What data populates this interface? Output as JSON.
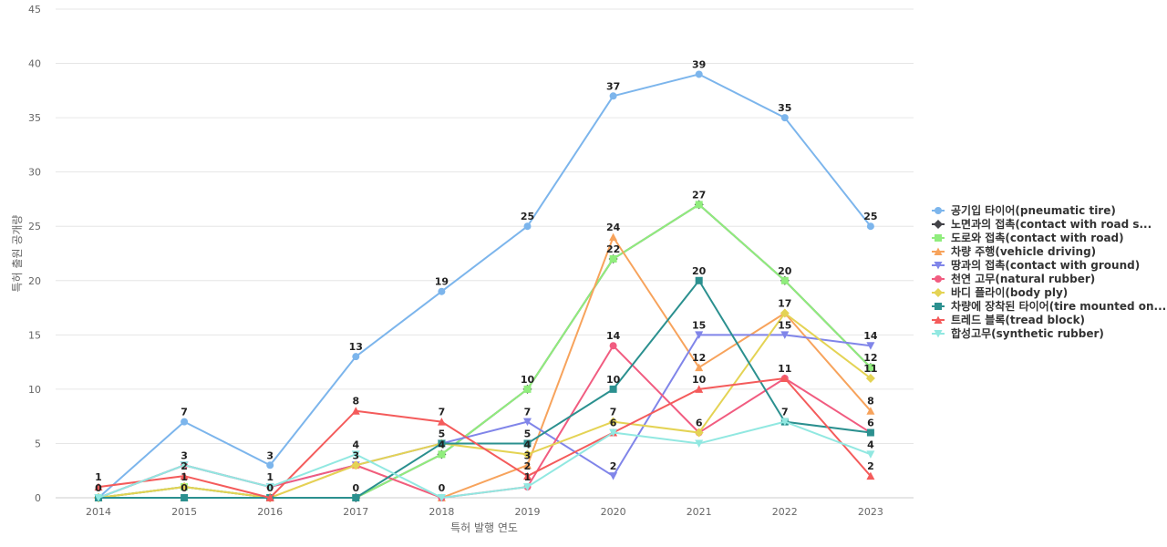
{
  "chart_data": {
    "type": "line",
    "xlabel": "특허 발행 연도",
    "ylabel": "특허 출원 공개량",
    "ylim": [
      0,
      45
    ],
    "yticks": [
      0,
      5,
      10,
      15,
      20,
      25,
      30,
      35,
      40,
      45
    ],
    "grid": true,
    "legend_position": "right",
    "categories": [
      "2014",
      "2015",
      "2016",
      "2017",
      "2018",
      "2019",
      "2020",
      "2021",
      "2022",
      "2023"
    ],
    "series": [
      {
        "name": "공기입 타이어(pneumatic tire)",
        "color": "#7cb5ec",
        "marker": "circle",
        "values": [
          0,
          7,
          3,
          13,
          19,
          25,
          37,
          39,
          35,
          25
        ]
      },
      {
        "name": "노면과의 접촉(contact with road s...",
        "color": "#434348",
        "marker": "diamond",
        "values": [
          0,
          1,
          0,
          0,
          4,
          10,
          22,
          27,
          20,
          12
        ]
      },
      {
        "name": "도로와 접촉(contact with road)",
        "color": "#90ed7d",
        "marker": "square",
        "values": [
          0,
          1,
          0,
          0,
          4,
          10,
          22,
          27,
          20,
          12
        ]
      },
      {
        "name": "차량 주행(vehicle driving)",
        "color": "#f7a35c",
        "marker": "triangle",
        "values": [
          0,
          0,
          0,
          3,
          0,
          3,
          24,
          12,
          17,
          8
        ]
      },
      {
        "name": "땅과의 접촉(contact with ground)",
        "color": "#8085e9",
        "marker": "triangle-down",
        "values": [
          0,
          3,
          1,
          3,
          5,
          7,
          2,
          15,
          15,
          14
        ]
      },
      {
        "name": "천연 고무(natural rubber)",
        "color": "#f15c80",
        "marker": "circle",
        "values": [
          0,
          3,
          1,
          3,
          0,
          1,
          14,
          6,
          11,
          6
        ]
      },
      {
        "name": "바디 플라이(body ply)",
        "color": "#e4d354",
        "marker": "diamond",
        "values": [
          0,
          1,
          0,
          3,
          5,
          4,
          7,
          6,
          17,
          11
        ]
      },
      {
        "name": "차량에 장착된 타이어(tire mounted on...",
        "color": "#2b908f",
        "marker": "square",
        "values": [
          0,
          0,
          0,
          0,
          5,
          5,
          10,
          20,
          7,
          6
        ]
      },
      {
        "name": "트레드 블록(tread block)",
        "color": "#f45b5b",
        "marker": "triangle",
        "values": [
          1,
          2,
          0,
          8,
          7,
          2,
          6,
          10,
          11,
          2
        ]
      },
      {
        "name": "합성고무(synthetic rubber)",
        "color": "#91e8e1",
        "marker": "triangle-down",
        "values": [
          0,
          3,
          1,
          4,
          0,
          1,
          6,
          5,
          7,
          4
        ]
      }
    ],
    "data_labels": [
      {
        "year": "2014",
        "value": 1,
        "text": "1"
      },
      {
        "year": "2014",
        "value": 0,
        "text": "0"
      },
      {
        "year": "2015",
        "value": 7,
        "text": "7"
      },
      {
        "year": "2015",
        "value": 3,
        "text": "3"
      },
      {
        "year": "2015",
        "value": 2,
        "text": "2"
      },
      {
        "year": "2015",
        "value": 1,
        "text": "1"
      },
      {
        "year": "2015",
        "value": 0,
        "text": "0"
      },
      {
        "year": "2016",
        "value": 3,
        "text": "3"
      },
      {
        "year": "2016",
        "value": 1,
        "text": "1"
      },
      {
        "year": "2016",
        "value": 0,
        "text": "0"
      },
      {
        "year": "2017",
        "value": 13,
        "text": "13"
      },
      {
        "year": "2017",
        "value": 8,
        "text": "8"
      },
      {
        "year": "2017",
        "value": 4,
        "text": "4"
      },
      {
        "year": "2017",
        "value": 3,
        "text": "3"
      },
      {
        "year": "2017",
        "value": 0,
        "text": "0"
      },
      {
        "year": "2018",
        "value": 19,
        "text": "19"
      },
      {
        "year": "2018",
        "value": 7,
        "text": "7"
      },
      {
        "year": "2018",
        "value": 5,
        "text": "5"
      },
      {
        "year": "2018",
        "value": 4,
        "text": "4"
      },
      {
        "year": "2018",
        "value": 0,
        "text": "0"
      },
      {
        "year": "2019",
        "value": 25,
        "text": "25"
      },
      {
        "year": "2019",
        "value": 10,
        "text": "10"
      },
      {
        "year": "2019",
        "value": 7,
        "text": "7"
      },
      {
        "year": "2019",
        "value": 5,
        "text": "5"
      },
      {
        "year": "2019",
        "value": 4,
        "text": "4"
      },
      {
        "year": "2019",
        "value": 3,
        "text": "3"
      },
      {
        "year": "2019",
        "value": 2,
        "text": "2"
      },
      {
        "year": "2019",
        "value": 1,
        "text": "1"
      },
      {
        "year": "2020",
        "value": 37,
        "text": "37"
      },
      {
        "year": "2020",
        "value": 24,
        "text": "24"
      },
      {
        "year": "2020",
        "value": 22,
        "text": "22"
      },
      {
        "year": "2020",
        "value": 14,
        "text": "14"
      },
      {
        "year": "2020",
        "value": 10,
        "text": "10"
      },
      {
        "year": "2020",
        "value": 7,
        "text": "7"
      },
      {
        "year": "2020",
        "value": 6,
        "text": "6"
      },
      {
        "year": "2020",
        "value": 2,
        "text": "2"
      },
      {
        "year": "2021",
        "value": 39,
        "text": "39"
      },
      {
        "year": "2021",
        "value": 27,
        "text": "27"
      },
      {
        "year": "2021",
        "value": 20,
        "text": "20"
      },
      {
        "year": "2021",
        "value": 15,
        "text": "15"
      },
      {
        "year": "2021",
        "value": 12,
        "text": "12"
      },
      {
        "year": "2021",
        "value": 10,
        "text": "10"
      },
      {
        "year": "2021",
        "value": 6,
        "text": "6"
      },
      {
        "year": "2022",
        "value": 35,
        "text": "35"
      },
      {
        "year": "2022",
        "value": 20,
        "text": "20"
      },
      {
        "year": "2022",
        "value": 17,
        "text": "17"
      },
      {
        "year": "2022",
        "value": 15,
        "text": "15"
      },
      {
        "year": "2022",
        "value": 11,
        "text": "11"
      },
      {
        "year": "2022",
        "value": 7,
        "text": "7"
      },
      {
        "year": "2023",
        "value": 25,
        "text": "25"
      },
      {
        "year": "2023",
        "value": 14,
        "text": "14"
      },
      {
        "year": "2023",
        "value": 12,
        "text": "12"
      },
      {
        "year": "2023",
        "value": 11,
        "text": "11"
      },
      {
        "year": "2023",
        "value": 8,
        "text": "8"
      },
      {
        "year": "2023",
        "value": 6,
        "text": "6"
      },
      {
        "year": "2023",
        "value": 4,
        "text": "4"
      },
      {
        "year": "2023",
        "value": 2,
        "text": "2"
      }
    ]
  }
}
